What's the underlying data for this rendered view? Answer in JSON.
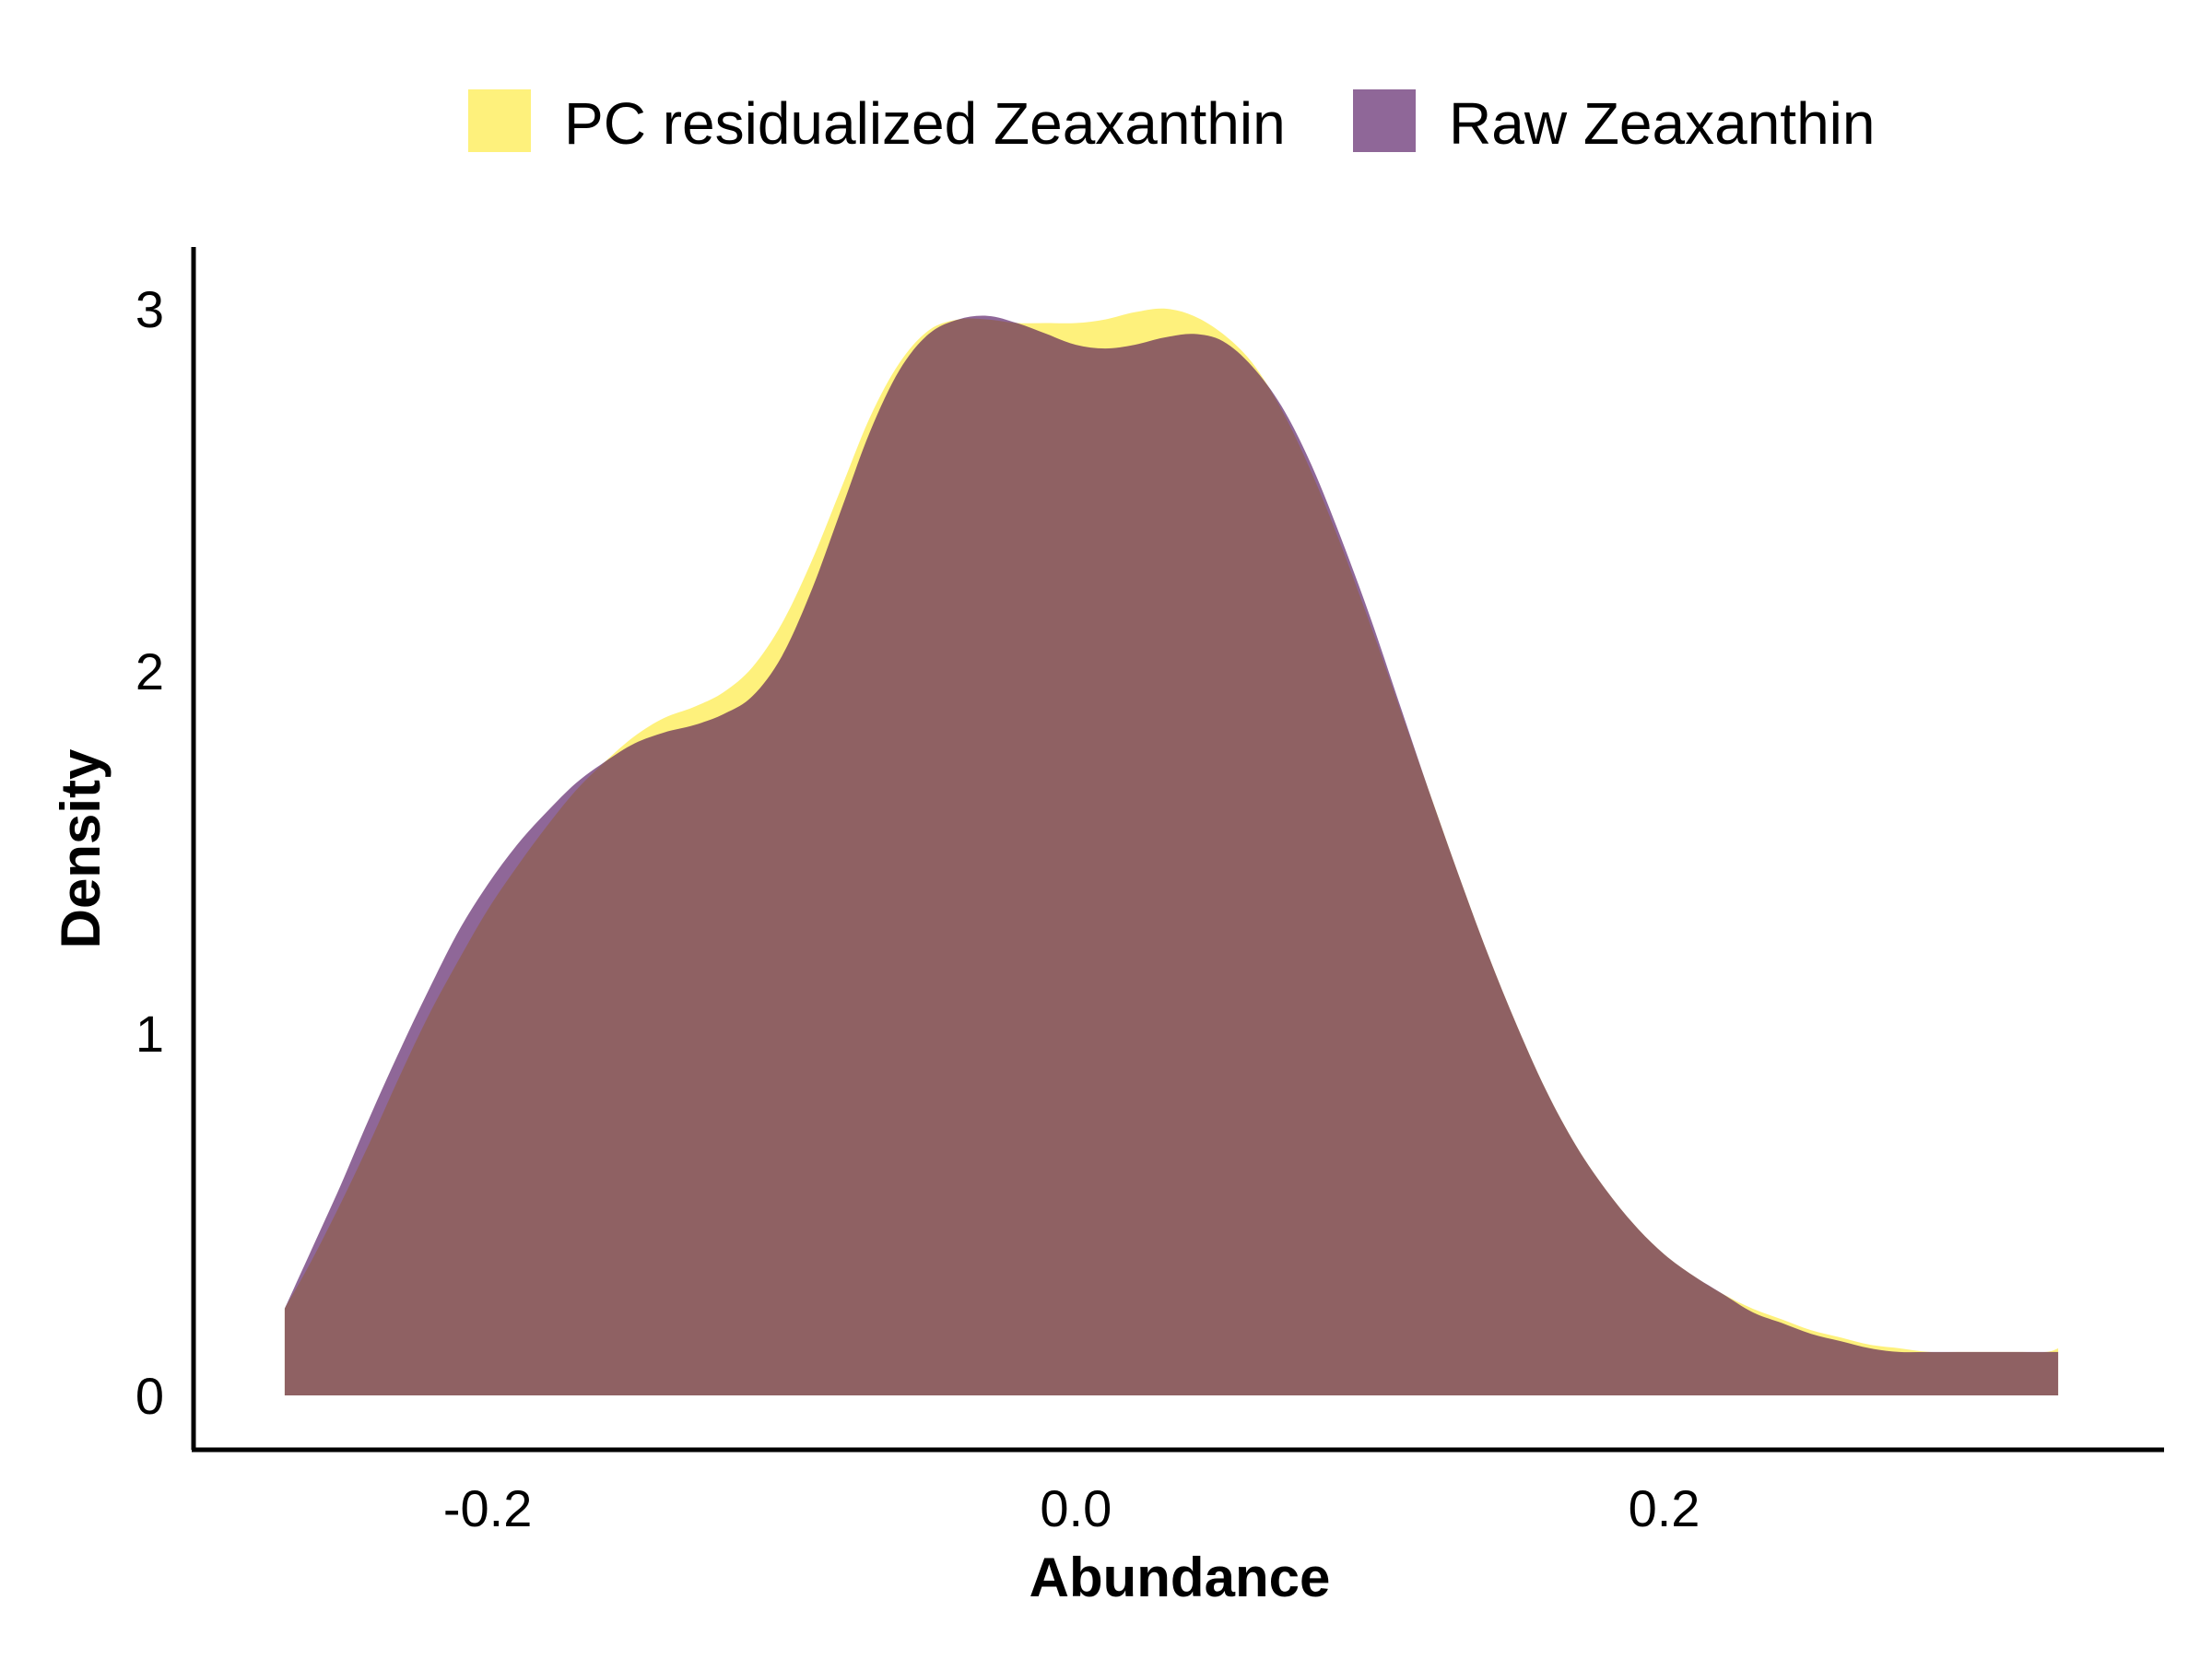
{
  "chart_data": {
    "type": "area",
    "xlabel": "Abundance",
    "ylabel": "Density",
    "xlim": [
      -0.3,
      0.37
    ],
    "ylim": [
      -0.15,
      3.17
    ],
    "x_ticks": [
      {
        "value": -0.2,
        "label": "-0.2"
      },
      {
        "value": 0.0,
        "label": "0.0"
      },
      {
        "value": 0.2,
        "label": "0.2"
      }
    ],
    "y_ticks": [
      {
        "value": 0,
        "label": "0"
      },
      {
        "value": 1,
        "label": "1"
      },
      {
        "value": 2,
        "label": "2"
      },
      {
        "value": 3,
        "label": "3"
      }
    ],
    "legend_position": "top",
    "grid": false,
    "series": [
      {
        "name": "PC residualized Zeaxanthin",
        "color": "#fde725",
        "opacity": 0.6,
        "x": [
          -0.269,
          -0.26,
          -0.25,
          -0.24,
          -0.23,
          -0.22,
          -0.21,
          -0.2,
          -0.19,
          -0.18,
          -0.17,
          -0.16,
          -0.15,
          -0.14,
          -0.13,
          -0.12,
          -0.11,
          -0.1,
          -0.09,
          -0.08,
          -0.07,
          -0.06,
          -0.05,
          -0.04,
          -0.03,
          -0.02,
          -0.01,
          0.0,
          0.01,
          0.02,
          0.03,
          0.04,
          0.05,
          0.06,
          0.07,
          0.08,
          0.09,
          0.1,
          0.11,
          0.12,
          0.13,
          0.14,
          0.15,
          0.16,
          0.17,
          0.18,
          0.19,
          0.2,
          0.21,
          0.22,
          0.23,
          0.24,
          0.25,
          0.26,
          0.27,
          0.28,
          0.29,
          0.3,
          0.31,
          0.32,
          0.33,
          0.334
        ],
        "y": [
          0.24,
          0.37,
          0.53,
          0.7,
          0.88,
          1.05,
          1.2,
          1.34,
          1.46,
          1.57,
          1.67,
          1.75,
          1.82,
          1.87,
          1.9,
          1.94,
          2.01,
          2.13,
          2.3,
          2.5,
          2.7,
          2.85,
          2.94,
          2.97,
          2.97,
          2.96,
          2.96,
          2.96,
          2.97,
          2.99,
          3.0,
          2.98,
          2.93,
          2.85,
          2.72,
          2.55,
          2.35,
          2.13,
          1.9,
          1.67,
          1.44,
          1.22,
          1.02,
          0.84,
          0.69,
          0.57,
          0.47,
          0.39,
          0.33,
          0.28,
          0.24,
          0.21,
          0.18,
          0.16,
          0.14,
          0.13,
          0.12,
          0.12,
          0.12,
          0.12,
          0.12,
          0.13
        ]
      },
      {
        "name": "Raw Zeaxanthin",
        "color": "#440154",
        "opacity": 0.6,
        "x": [
          -0.269,
          -0.26,
          -0.25,
          -0.24,
          -0.23,
          -0.22,
          -0.21,
          -0.2,
          -0.19,
          -0.18,
          -0.17,
          -0.16,
          -0.15,
          -0.14,
          -0.13,
          -0.12,
          -0.11,
          -0.1,
          -0.09,
          -0.08,
          -0.07,
          -0.06,
          -0.05,
          -0.04,
          -0.03,
          -0.02,
          -0.01,
          0.0,
          0.01,
          0.02,
          0.03,
          0.04,
          0.05,
          0.06,
          0.07,
          0.08,
          0.09,
          0.1,
          0.11,
          0.12,
          0.13,
          0.14,
          0.15,
          0.16,
          0.17,
          0.18,
          0.19,
          0.2,
          0.21,
          0.22,
          0.23,
          0.24,
          0.25,
          0.26,
          0.27,
          0.28,
          0.29,
          0.3,
          0.31,
          0.32,
          0.33,
          0.334
        ],
        "y": [
          0.24,
          0.4,
          0.58,
          0.77,
          0.95,
          1.12,
          1.28,
          1.41,
          1.52,
          1.61,
          1.69,
          1.75,
          1.8,
          1.83,
          1.85,
          1.88,
          1.93,
          2.04,
          2.22,
          2.44,
          2.66,
          2.83,
          2.93,
          2.97,
          2.98,
          2.96,
          2.93,
          2.9,
          2.89,
          2.9,
          2.92,
          2.93,
          2.91,
          2.84,
          2.73,
          2.57,
          2.37,
          2.15,
          1.91,
          1.67,
          1.44,
          1.22,
          1.02,
          0.84,
          0.69,
          0.57,
          0.47,
          0.39,
          0.33,
          0.28,
          0.23,
          0.2,
          0.17,
          0.15,
          0.13,
          0.12,
          0.12,
          0.12,
          0.12,
          0.12,
          0.12,
          0.12
        ]
      }
    ]
  }
}
